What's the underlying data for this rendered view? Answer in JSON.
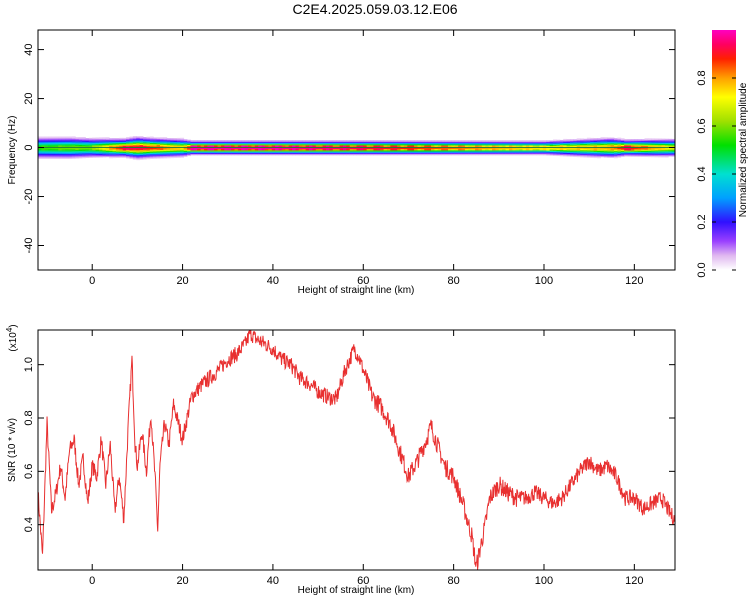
{
  "title": "C2E4.2025.059.03.12.E06",
  "chart_data": [
    {
      "type": "heatmap",
      "xlabel": "Height of straight line (km)",
      "ylabel": "Frequency (Hz)",
      "xlim": [
        -12,
        129
      ],
      "ylim": [
        -50,
        48
      ],
      "x_ticks": [
        "0",
        "20",
        "40",
        "60",
        "80",
        "100",
        "120"
      ],
      "y_ticks": [
        "-40",
        "-20",
        "0",
        "20",
        "40"
      ],
      "colorbar": {
        "label": "Normalized spectral amplitude",
        "range": [
          0,
          1
        ],
        "ticks": [
          "0.0",
          "0.2",
          "0.4",
          "0.6",
          "0.8"
        ]
      },
      "band": [
        {
          "x": -12,
          "half_width_hz": 5.5,
          "peak": 0.55
        },
        {
          "x": -5,
          "half_width_hz": 5.5,
          "peak": 0.6
        },
        {
          "x": 0,
          "half_width_hz": 5.0,
          "peak": 0.6
        },
        {
          "x": 7,
          "half_width_hz": 4.5,
          "peak": 0.95
        },
        {
          "x": 10,
          "half_width_hz": 5.5,
          "peak": 0.95
        },
        {
          "x": 13,
          "half_width_hz": 5.0,
          "peak": 0.9
        },
        {
          "x": 20,
          "half_width_hz": 4.5,
          "peak": 0.75
        },
        {
          "x": 22,
          "half_width_hz": 3.5,
          "peak": 1.0
        },
        {
          "x": 40,
          "half_width_hz": 3.5,
          "peak": 1.0
        },
        {
          "x": 60,
          "half_width_hz": 3.5,
          "peak": 0.95
        },
        {
          "x": 80,
          "half_width_hz": 3.5,
          "peak": 0.85
        },
        {
          "x": 100,
          "half_width_hz": 3.5,
          "peak": 0.75
        },
        {
          "x": 115,
          "half_width_hz": 5.0,
          "peak": 0.8
        },
        {
          "x": 118,
          "half_width_hz": 4.0,
          "peak": 0.95
        },
        {
          "x": 129,
          "half_width_hz": 4.5,
          "peak": 0.7
        }
      ]
    },
    {
      "type": "line",
      "xlabel": "Height of straight line (km)",
      "ylabel": "SNR (10 * v/v)",
      "y_multiplier": "(x10",
      "y_multiplier_exp": "4",
      "multiplier_close": ")",
      "xlim": [
        -12,
        129
      ],
      "ylim": [
        0.23,
        1.13
      ],
      "x_ticks": [
        "0",
        "20",
        "40",
        "60",
        "80",
        "100",
        "120"
      ],
      "y_ticks": [
        "0.4",
        "0.6",
        "0.8",
        "1.0"
      ],
      "line_color": "#e83030",
      "series": [
        {
          "x": [
            -12,
            -11,
            -10,
            -9,
            -8,
            -7,
            -6,
            -5,
            -4,
            -3,
            -2,
            -1,
            0,
            1,
            2,
            3,
            4,
            5,
            6,
            7,
            8,
            8.8,
            9.5,
            10,
            11,
            12,
            13,
            14,
            14.5,
            15,
            16,
            17,
            18,
            20,
            22,
            24,
            26,
            28,
            30,
            32,
            34,
            35,
            36,
            38,
            40,
            42,
            44,
            46,
            48,
            50,
            52,
            54,
            56,
            58,
            59,
            60,
            62,
            64,
            66,
            68,
            70,
            72,
            74,
            75,
            76,
            78,
            80,
            82,
            84,
            85,
            86,
            87,
            88,
            90,
            92,
            94,
            96,
            98,
            100,
            102,
            104,
            106,
            108,
            110,
            112,
            114,
            116,
            118,
            120,
            122,
            124,
            126,
            128,
            129
          ],
          "y": [
            0.52,
            0.28,
            0.78,
            0.45,
            0.52,
            0.62,
            0.5,
            0.68,
            0.72,
            0.55,
            0.65,
            0.48,
            0.62,
            0.58,
            0.72,
            0.55,
            0.7,
            0.45,
            0.58,
            0.42,
            0.78,
            1.02,
            0.7,
            0.62,
            0.75,
            0.6,
            0.82,
            0.55,
            0.38,
            0.62,
            0.78,
            0.7,
            0.85,
            0.72,
            0.88,
            0.92,
            0.95,
            0.98,
            1.02,
            1.04,
            1.08,
            1.12,
            1.1,
            1.08,
            1.06,
            1.02,
            1.0,
            0.95,
            0.93,
            0.9,
            0.88,
            0.87,
            0.98,
            1.06,
            1.03,
            0.98,
            0.88,
            0.84,
            0.78,
            0.68,
            0.58,
            0.64,
            0.72,
            0.77,
            0.72,
            0.62,
            0.58,
            0.48,
            0.36,
            0.24,
            0.32,
            0.4,
            0.5,
            0.55,
            0.52,
            0.5,
            0.5,
            0.52,
            0.5,
            0.48,
            0.5,
            0.55,
            0.6,
            0.64,
            0.6,
            0.62,
            0.58,
            0.5,
            0.5,
            0.46,
            0.48,
            0.5,
            0.44,
            0.42
          ]
        }
      ]
    }
  ]
}
